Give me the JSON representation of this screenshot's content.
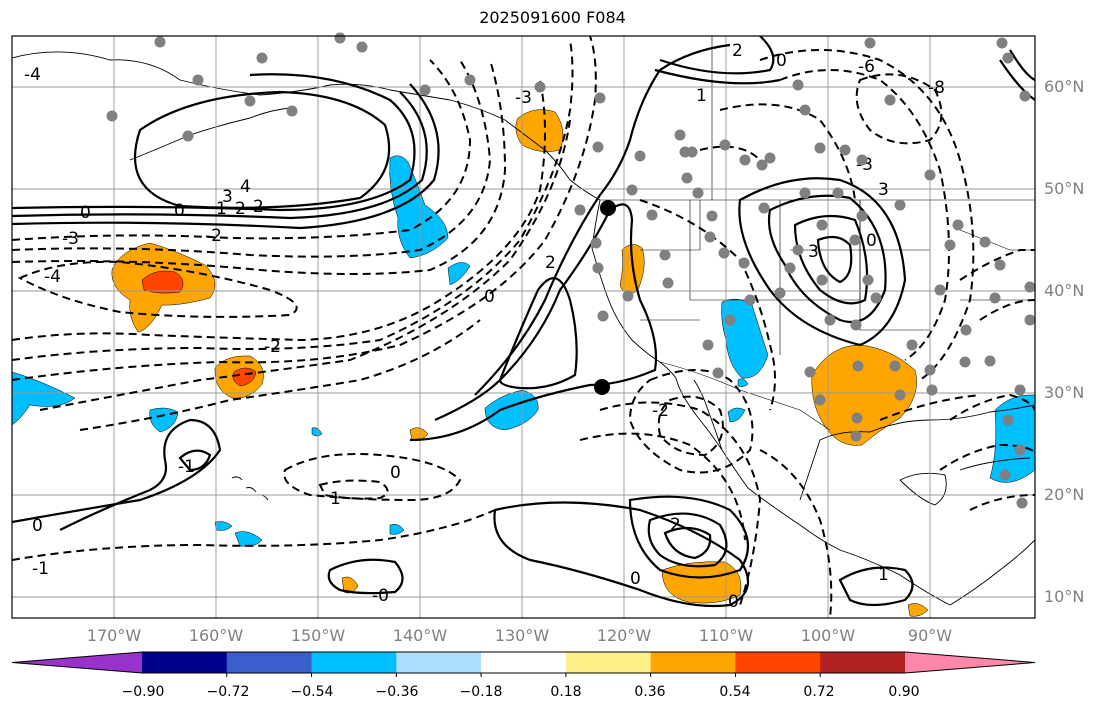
{
  "title": "2025091600 F084",
  "latitude_labels": [
    "60°N",
    "50°N",
    "40°N",
    "30°N",
    "20°N",
    "10°N"
  ],
  "longitude_labels": [
    "170°W",
    "160°W",
    "150°W",
    "140°W",
    "130°W",
    "120°W",
    "110°W",
    "100°W",
    "90°W"
  ],
  "colorbar": {
    "ticks": [
      "−0.90",
      "−0.72",
      "−0.54",
      "−0.36",
      "−0.18",
      "0.18",
      "0.36",
      "0.54",
      "0.72",
      "0.90"
    ],
    "colors": [
      "#9932CC",
      "#00008B",
      "#3A5FCD",
      "#00BFFF",
      "#ADDFFF",
      "#FFFFFF",
      "#FFEE88",
      "#FFA500",
      "#FF4500",
      "#B22222",
      "#FF88AA"
    ]
  },
  "contour_labels": [
    "4",
    "3",
    "2",
    "2",
    "1",
    "0",
    "0",
    "-3",
    "-4",
    "-2",
    "-3",
    "-2",
    "2",
    "0",
    "3",
    "3",
    "-1",
    "0",
    "1",
    "-1",
    "0",
    "-0",
    "1",
    "2",
    "0",
    "0",
    "1",
    "0",
    "-8",
    "-6",
    "-2",
    "-3",
    "-4",
    "2",
    "0"
  ],
  "map_extent": {
    "lon_min": -180,
    "lon_max": -80,
    "lat_min": 8,
    "lat_max": 65
  }
}
